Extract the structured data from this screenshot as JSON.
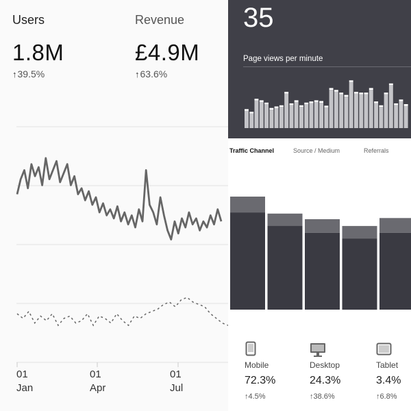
{
  "summary": {
    "users": {
      "label": "Users",
      "value": "1.8M",
      "change": "39.5%",
      "arrow": "↑"
    },
    "revenue": {
      "label": "Revenue",
      "value": "£4.9M",
      "change": "63.6%",
      "arrow": "↑"
    }
  },
  "timeline": {
    "x_ticks": [
      {
        "day": "01",
        "month": "Jan"
      },
      {
        "day": "01",
        "month": "Apr"
      },
      {
        "day": "01",
        "month": "Jul"
      }
    ],
    "series_main": [
      0.62,
      0.72,
      0.78,
      0.66,
      0.82,
      0.74,
      0.8,
      0.68,
      0.86,
      0.72,
      0.78,
      0.84,
      0.7,
      0.76,
      0.82,
      0.68,
      0.74,
      0.62,
      0.66,
      0.58,
      0.64,
      0.55,
      0.6,
      0.5,
      0.56,
      0.48,
      0.52,
      0.46,
      0.54,
      0.44,
      0.5,
      0.42,
      0.48,
      0.4,
      0.52,
      0.44,
      0.78,
      0.55,
      0.5,
      0.42,
      0.6,
      0.48,
      0.38,
      0.32,
      0.44,
      0.36,
      0.46,
      0.4,
      0.5,
      0.42,
      0.46,
      0.38,
      0.44,
      0.4,
      0.48,
      0.42,
      0.52,
      0.44
    ],
    "series_secondary": [
      0.1,
      0.06,
      0.12,
      0.02,
      0.08,
      0.04,
      0.1,
      0.0,
      0.06,
      0.08,
      0.02,
      0.04,
      0.1,
      0.0,
      0.08,
      0.06,
      0.02,
      0.1,
      0.04,
      0.0,
      0.08,
      0.06,
      0.1,
      0.12,
      0.14,
      0.18,
      0.2,
      0.16,
      0.22,
      0.24,
      0.2,
      0.18,
      0.16,
      0.1,
      0.06,
      0.02,
      0.0
    ],
    "colors": {
      "main": "#666666",
      "secondary": "#666666"
    }
  },
  "realtime": {
    "active_users": "35",
    "title": "Page views per minute",
    "bars": [
      0.45,
      0.38,
      0.72,
      0.68,
      0.62,
      0.48,
      0.52,
      0.55,
      0.9,
      0.6,
      0.68,
      0.55,
      0.62,
      0.65,
      0.68,
      0.66,
      0.54,
      1.0,
      0.95,
      0.88,
      0.82,
      1.2,
      0.9,
      0.88,
      0.88,
      1.0,
      0.65,
      0.55,
      0.88,
      1.12,
      0.6,
      0.7,
      0.58
    ]
  },
  "traffic": {
    "tabs": [
      {
        "label": "Traffic Channel",
        "active": true
      },
      {
        "label": "Source / Medium",
        "active": false
      },
      {
        "label": "Referrals",
        "active": false
      }
    ],
    "bars": [
      {
        "total": 1.0,
        "dark": 0.86
      },
      {
        "total": 0.85,
        "dark": 0.74
      },
      {
        "total": 0.8,
        "dark": 0.68
      },
      {
        "total": 0.74,
        "dark": 0.63
      },
      {
        "total": 0.81,
        "dark": 0.68
      }
    ],
    "colors": {
      "dark": "#3a3a42",
      "light": "#6a6a70"
    }
  },
  "devices": [
    {
      "name": "Mobile",
      "icon": "mobile-icon",
      "percent": "72.3%",
      "change": "4.5%",
      "arrow": "↑"
    },
    {
      "name": "Desktop",
      "icon": "desktop-icon",
      "percent": "24.3%",
      "change": "38.6%",
      "arrow": "↑"
    },
    {
      "name": "Tablet",
      "icon": "tablet-icon",
      "percent": "3.4%",
      "change": "6.8%",
      "arrow": "↑"
    }
  ]
}
